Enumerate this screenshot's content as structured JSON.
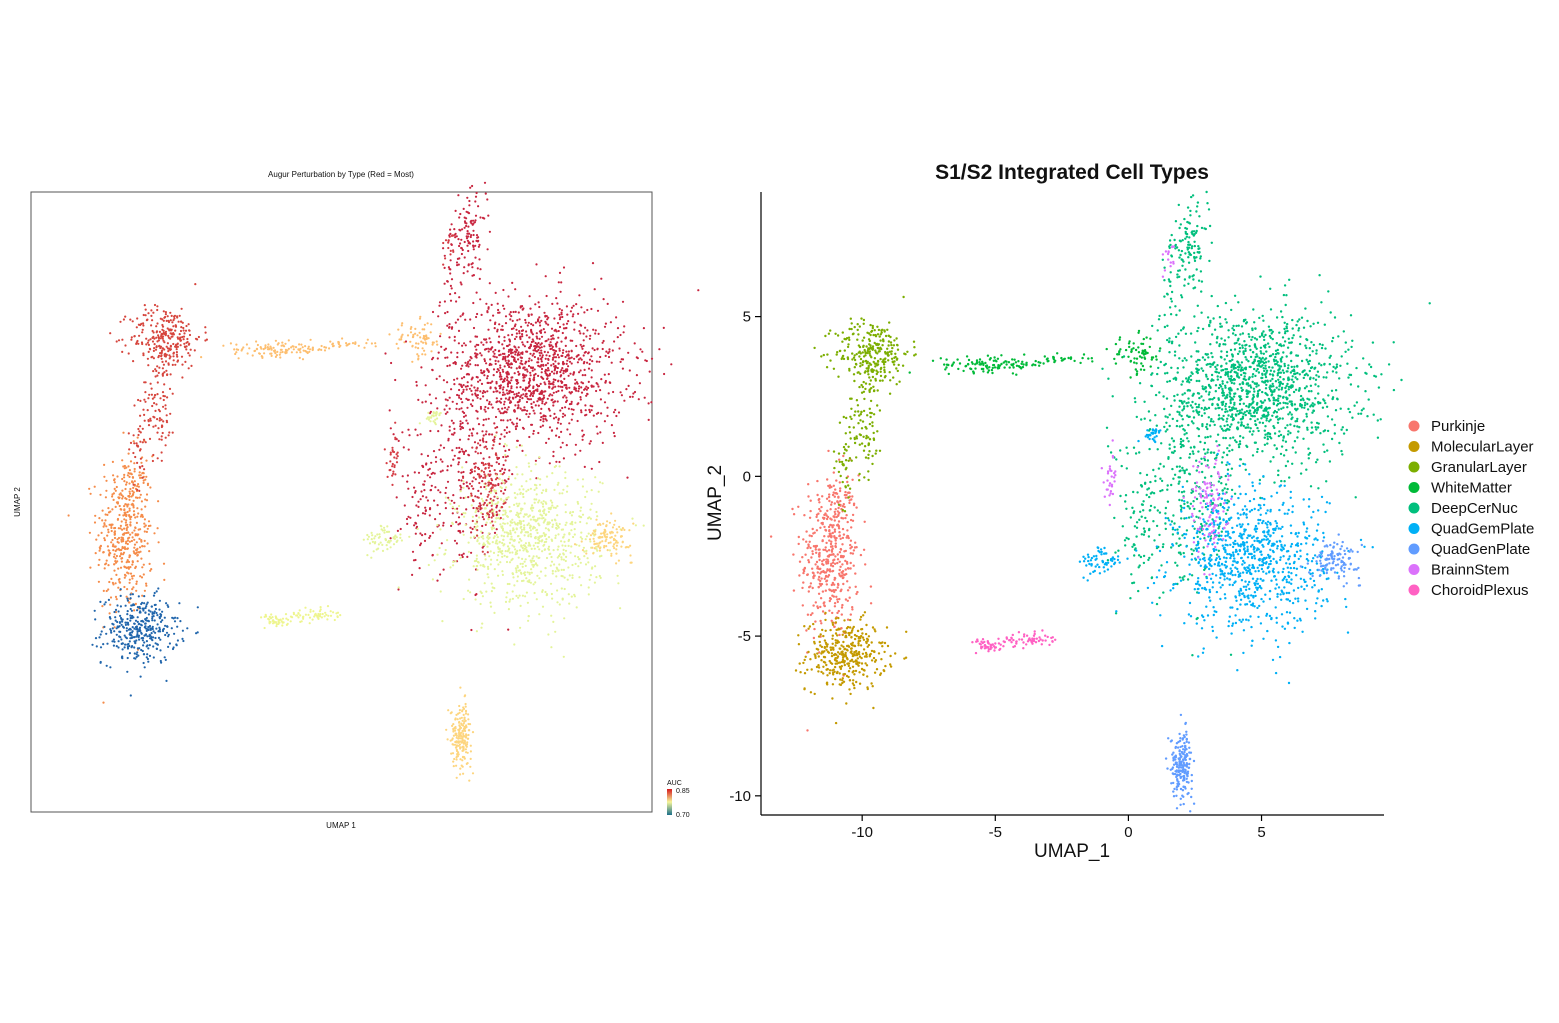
{
  "chart_data": [
    {
      "type": "scatter",
      "title": "Augur Perturbation by Type (Red = Most)",
      "xlabel": "UMAP 1",
      "ylabel": "UMAP 2",
      "colorbar": {
        "title": "AUC",
        "min": 0.7,
        "max": 0.85,
        "min_label": "0.70",
        "max_label": "0.85",
        "colors": [
          "#1b6f8a",
          "#f5f59a",
          "#d7191c"
        ]
      },
      "grid": false,
      "cell_types": [
        {
          "name": "Purkinje",
          "auc": 0.8,
          "color": "#f58c4a"
        },
        {
          "name": "MolecularLayer",
          "auc": 0.7,
          "color": "#2166ac"
        },
        {
          "name": "GranularLayer",
          "auc": 0.81,
          "color": "#d6453d"
        },
        {
          "name": "WhiteMatter",
          "auc": 0.78,
          "color": "#fdbe6f"
        },
        {
          "name": "DeepCerNuc",
          "auc": 0.84,
          "color": "#c8253f"
        },
        {
          "name": "QuadGemPlate",
          "auc": 0.74,
          "color": "#e4f49a"
        },
        {
          "name": "QuadGenPlate",
          "auc": 0.77,
          "color": "#fdd57e"
        },
        {
          "name": "BrainnStem",
          "auc": 0.83,
          "color": "#d53d45"
        },
        {
          "name": "ChoroidPlexus",
          "auc": 0.75,
          "color": "#eef58f"
        }
      ]
    },
    {
      "type": "scatter",
      "title": "S1/S2 Integrated Cell Types",
      "xlabel": "UMAP_1",
      "ylabel": "UMAP_2",
      "xticks": [
        -10,
        -5,
        0,
        5
      ],
      "xtick_labels": [
        "-10",
        "-5",
        "0",
        "5"
      ],
      "yticks": [
        -10,
        -5,
        0,
        5
      ],
      "ytick_labels": [
        "-10",
        "-5",
        "0",
        "5"
      ],
      "xlim": [
        -13.8,
        9.6
      ],
      "ylim": [
        -10.6,
        8.9
      ],
      "grid": false,
      "legend_position": "right",
      "series": [
        {
          "name": "Purkinje",
          "color": "#F8766D",
          "clusters": [
            {
              "cx": -11.2,
              "cy": -2.5,
              "sx": 0.55,
              "sy": 1.3,
              "n": 420
            },
            {
              "cx": -10.9,
              "cy": -1.1,
              "sx": 0.25,
              "sy": 0.5,
              "n": 40
            }
          ]
        },
        {
          "name": "MolecularLayer",
          "color": "#C49A00",
          "clusters": [
            {
              "cx": -10.6,
              "cy": -5.6,
              "sx": 0.75,
              "sy": 0.55,
              "n": 360
            }
          ]
        },
        {
          "name": "GranularLayer",
          "color": "#7CAE00",
          "clusters": [
            {
              "cx": -9.6,
              "cy": 3.9,
              "sx": 0.7,
              "sy": 0.5,
              "n": 260
            },
            {
              "cx": -9.9,
              "cy": 1.8,
              "sx": 0.35,
              "sy": 0.9,
              "n": 110
            },
            {
              "cx": -10.7,
              "cy": 0.3,
              "sx": 0.2,
              "sy": 0.6,
              "n": 30
            }
          ]
        },
        {
          "name": "WhiteMatter",
          "color": "#00BA38",
          "clusters": [
            {
              "cx": -5.0,
              "cy": 3.5,
              "sx": 1.0,
              "sy": 0.12,
              "n": 120
            },
            {
              "cx": -2.5,
              "cy": 3.7,
              "sx": 0.5,
              "sy": 0.08,
              "n": 25
            },
            {
              "cx": 0.3,
              "cy": 3.8,
              "sx": 0.5,
              "sy": 0.3,
              "n": 70
            }
          ]
        },
        {
          "name": "DeepCerNuc",
          "color": "#00BF7D",
          "clusters": [
            {
              "cx": 4.8,
              "cy": 2.8,
              "sx": 1.8,
              "sy": 1.2,
              "n": 1300
            },
            {
              "cx": 2.3,
              "cy": 7.2,
              "sx": 0.35,
              "sy": 0.6,
              "n": 110
            },
            {
              "cx": 1.6,
              "cy": 5.5,
              "sx": 0.2,
              "sy": 0.9,
              "n": 40
            },
            {
              "cx": 2.2,
              "cy": -0.8,
              "sx": 1.0,
              "sy": 1.4,
              "n": 280
            },
            {
              "cx": 0.4,
              "cy": -1.5,
              "sx": 0.35,
              "sy": 1.2,
              "n": 70
            }
          ]
        },
        {
          "name": "QuadGemPlate",
          "color": "#00B0F6",
          "clusters": [
            {
              "cx": 4.6,
              "cy": -2.6,
              "sx": 1.4,
              "sy": 1.1,
              "n": 850
            },
            {
              "cx": -1.0,
              "cy": -2.7,
              "sx": 0.4,
              "sy": 0.25,
              "n": 60
            },
            {
              "cx": 0.9,
              "cy": 1.3,
              "sx": 0.2,
              "sy": 0.1,
              "n": 30
            }
          ]
        },
        {
          "name": "QuadGenPlate",
          "color": "#619CFF",
          "clusters": [
            {
              "cx": 2.0,
              "cy": -9.0,
              "sx": 0.2,
              "sy": 0.5,
              "n": 190
            },
            {
              "cx": 7.8,
              "cy": -2.6,
              "sx": 0.45,
              "sy": 0.3,
              "n": 110
            }
          ]
        },
        {
          "name": "BrainnStem",
          "color": "#DB72FB",
          "clusters": [
            {
              "cx": 3.0,
              "cy": -0.9,
              "sx": 0.35,
              "sy": 0.8,
              "n": 110
            },
            {
              "cx": -0.7,
              "cy": -0.2,
              "sx": 0.15,
              "sy": 0.4,
              "n": 30
            },
            {
              "cx": 1.6,
              "cy": 6.8,
              "sx": 0.15,
              "sy": 0.3,
              "n": 15
            }
          ]
        },
        {
          "name": "ChoroidPlexus",
          "color": "#FF61C3",
          "clusters": [
            {
              "cx": -5.2,
              "cy": -5.3,
              "sx": 0.3,
              "sy": 0.1,
              "n": 45
            },
            {
              "cx": -3.9,
              "cy": -5.1,
              "sx": 0.5,
              "sy": 0.1,
              "n": 60
            }
          ]
        }
      ]
    }
  ]
}
